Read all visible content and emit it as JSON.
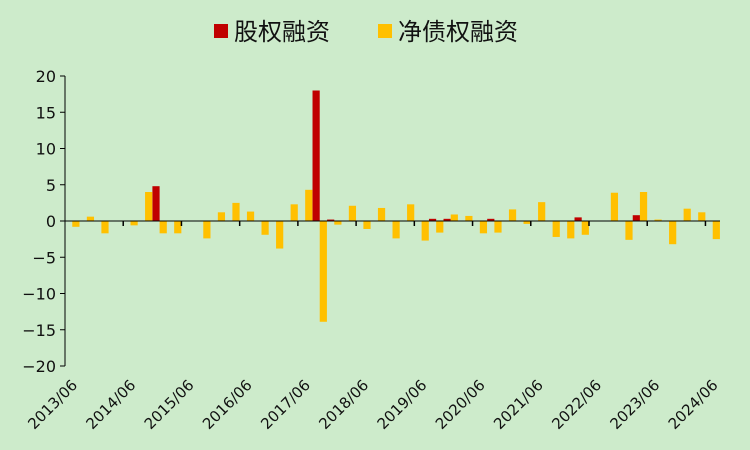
{
  "colors": {
    "background": "#cdebcb",
    "equity": "#c00000",
    "net_debt": "#ffc000",
    "axis": "#000000"
  },
  "chart_data": {
    "type": "bar",
    "title": "",
    "xlabel": "",
    "ylabel": "",
    "ylim": [
      -20,
      20
    ],
    "yticks": [
      20,
      15,
      10,
      5,
      0,
      -5,
      -10,
      -15,
      -20
    ],
    "grid": false,
    "legend_position": "top-center",
    "x_tick_labels": [
      "2013/06",
      "2014/06",
      "2015/06",
      "2016/06",
      "2017/06",
      "2018/06",
      "2019/06",
      "2020/06",
      "2021/06",
      "2022/06",
      "2023/06",
      "2024/06"
    ],
    "categories": [
      "2013/06",
      "2013/09",
      "2013/12",
      "2014/03",
      "2014/06",
      "2014/09",
      "2014/12",
      "2015/03",
      "2015/06",
      "2015/09",
      "2015/12",
      "2016/03",
      "2016/06",
      "2016/09",
      "2016/12",
      "2017/03",
      "2017/06",
      "2017/09",
      "2017/12",
      "2018/03",
      "2018/06",
      "2018/09",
      "2018/12",
      "2019/03",
      "2019/06",
      "2019/09",
      "2019/12",
      "2020/03",
      "2020/06",
      "2020/09",
      "2020/12",
      "2021/03",
      "2021/06",
      "2021/09",
      "2021/12",
      "2022/03",
      "2022/06",
      "2022/09",
      "2022/12",
      "2023/03",
      "2023/06",
      "2023/09",
      "2023/12",
      "2024/03",
      "2024/06"
    ],
    "series": [
      {
        "name": "股权融资",
        "color": "#c00000",
        "values": [
          0.05,
          0.05,
          0,
          0,
          0.05,
          0,
          4.8,
          0,
          0,
          0,
          0,
          0,
          0,
          0,
          0,
          0,
          0,
          18,
          0.2,
          0,
          0,
          0,
          0,
          0,
          0,
          0.3,
          0.3,
          0,
          0,
          0.3,
          0,
          0,
          0,
          0,
          0,
          0.5,
          0,
          0,
          0,
          0.8,
          0,
          0,
          0,
          0,
          0
        ]
      },
      {
        "name": "净债权融资",
        "color": "#ffc000",
        "values": [
          -0.8,
          0.6,
          -1.7,
          0,
          -0.6,
          4.0,
          -1.7,
          -1.7,
          0,
          -2.4,
          1.2,
          2.5,
          1.3,
          -1.9,
          -3.8,
          2.3,
          4.3,
          -13.9,
          -0.5,
          2.1,
          -1.1,
          1.8,
          -2.4,
          2.3,
          -2.7,
          -1.6,
          0.9,
          0.7,
          -1.7,
          -1.6,
          1.6,
          -0.4,
          2.6,
          -2.2,
          -2.4,
          -1.9,
          0,
          3.9,
          -2.6,
          4.0,
          0.2,
          -3.2,
          1.7,
          1.2,
          -2.5
        ]
      }
    ]
  }
}
